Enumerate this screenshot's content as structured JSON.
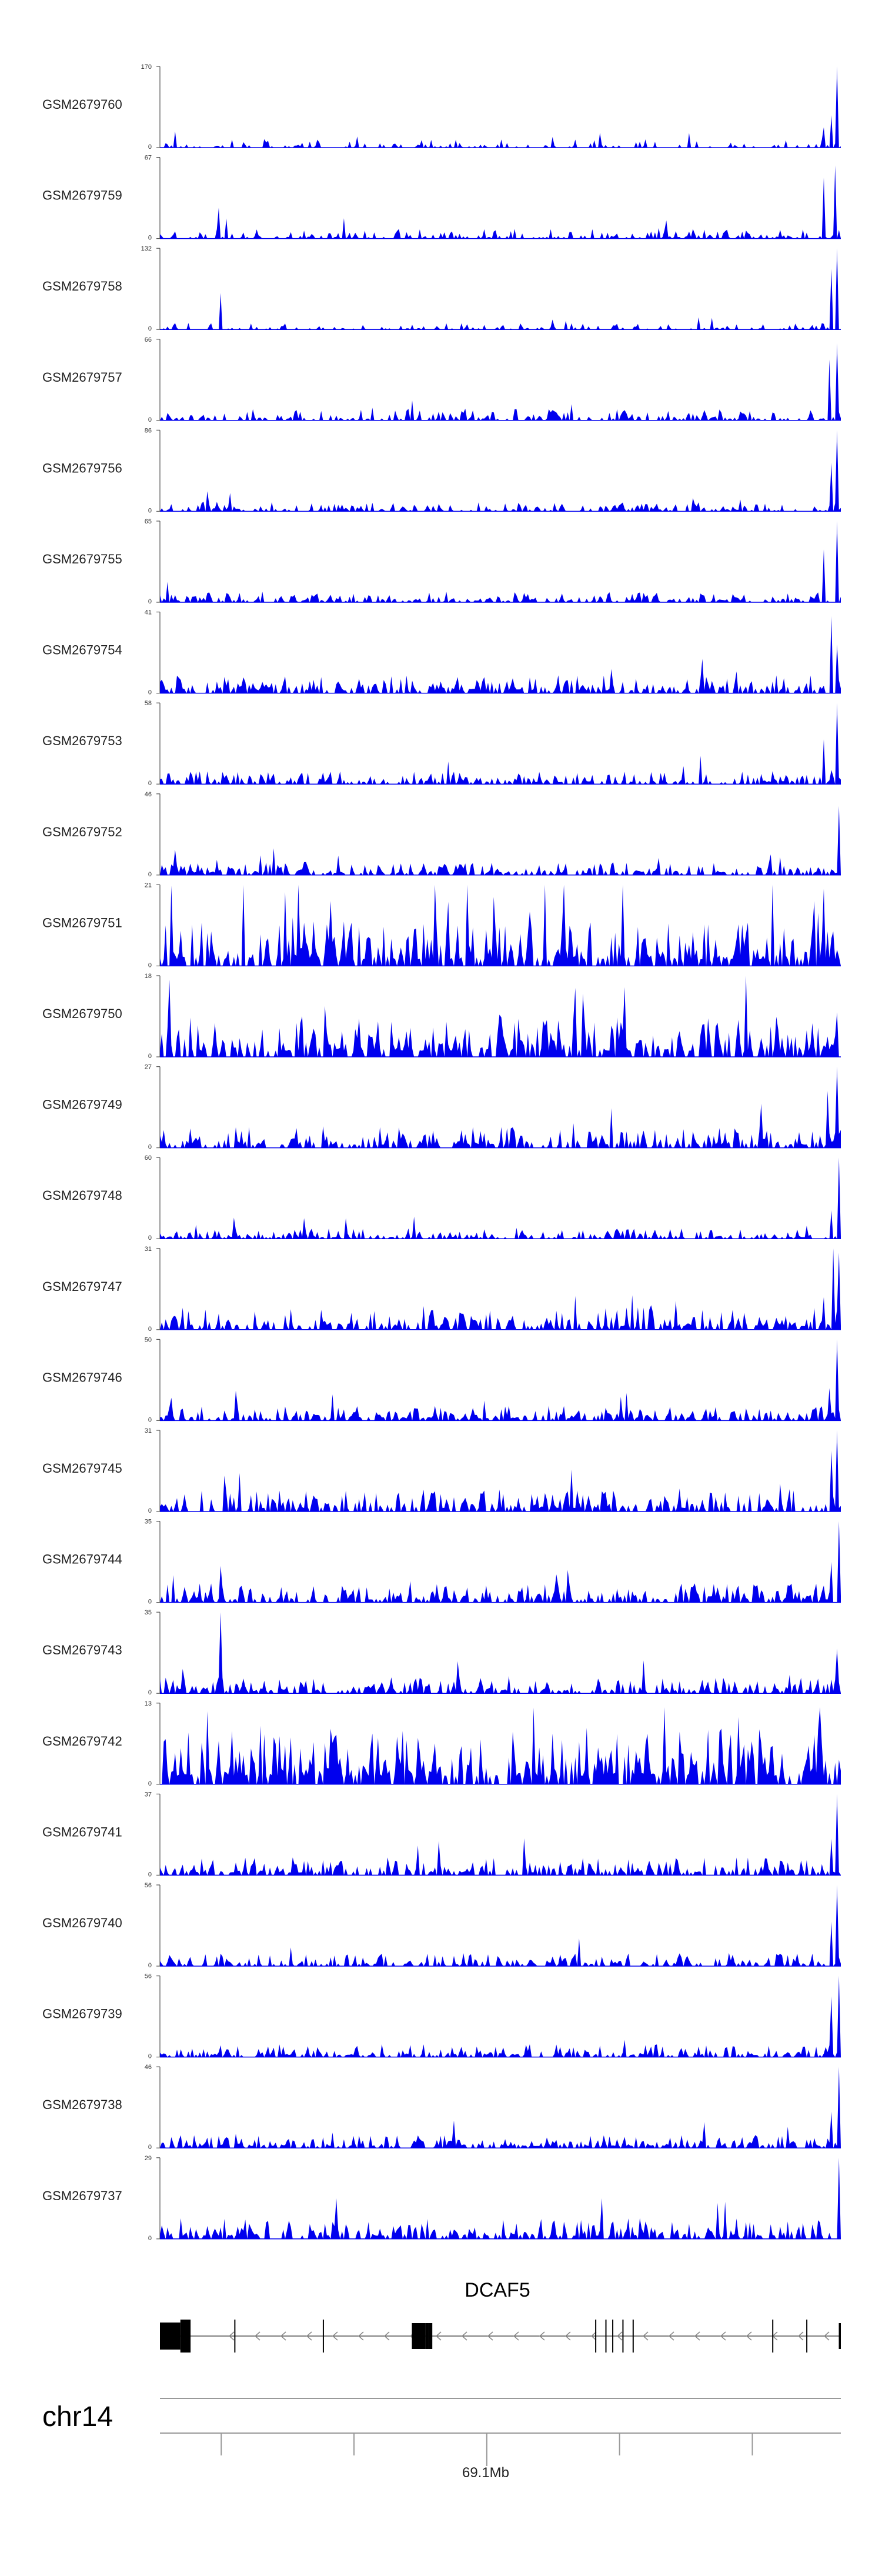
{
  "chart_data": {
    "type": "area",
    "title": "",
    "color": "#0000ee",
    "tracks": [
      {
        "name": "GSM2679760",
        "ymax": "170",
        "ymin": "0",
        "seed": 11,
        "scale": 0.1,
        "density": 0.3,
        "peaks": [
          [
            0.995,
            1.0
          ],
          [
            0.985,
            0.4
          ],
          [
            0.975,
            0.25
          ]
        ]
      },
      {
        "name": "GSM2679759",
        "ymax": "67",
        "ymin": "0",
        "seed": 23,
        "scale": 0.12,
        "density": 0.42,
        "peaks": [
          [
            0.993,
            0.9
          ],
          [
            0.975,
            0.75
          ],
          [
            0.085,
            0.38
          ],
          [
            0.27,
            0.25
          ]
        ]
      },
      {
        "name": "GSM2679758",
        "ymax": "132",
        "ymin": "0",
        "seed": 37,
        "scale": 0.08,
        "density": 0.35,
        "peaks": [
          [
            0.994,
            1.0
          ],
          [
            0.985,
            0.75
          ],
          [
            0.09,
            0.45
          ]
        ]
      },
      {
        "name": "GSM2679757",
        "ymax": "66",
        "ymin": "0",
        "seed": 41,
        "scale": 0.14,
        "density": 0.5,
        "peaks": [
          [
            0.995,
            0.95
          ],
          [
            0.982,
            0.75
          ]
        ]
      },
      {
        "name": "GSM2679756",
        "ymax": "86",
        "ymin": "0",
        "seed": 53,
        "scale": 0.12,
        "density": 0.48,
        "peaks": [
          [
            0.995,
            1.0
          ],
          [
            0.985,
            0.6
          ]
        ]
      },
      {
        "name": "GSM2679755",
        "ymax": "65",
        "ymin": "0",
        "seed": 67,
        "scale": 0.13,
        "density": 0.55,
        "peaks": [
          [
            0.995,
            1.0
          ],
          [
            0.975,
            0.65
          ],
          [
            0.01,
            0.25
          ]
        ]
      },
      {
        "name": "GSM2679754",
        "ymax": "41",
        "ymin": "0",
        "seed": 71,
        "scale": 0.22,
        "density": 0.6,
        "peaks": [
          [
            0.985,
            0.95
          ],
          [
            0.995,
            0.6
          ]
        ]
      },
      {
        "name": "GSM2679753",
        "ymax": "58",
        "ymin": "0",
        "seed": 83,
        "scale": 0.16,
        "density": 0.55,
        "peaks": [
          [
            0.995,
            1.0
          ],
          [
            0.975,
            0.55
          ],
          [
            0.77,
            0.22
          ]
        ]
      },
      {
        "name": "GSM2679752",
        "ymax": "46",
        "ymin": "0",
        "seed": 97,
        "scale": 0.16,
        "density": 0.6,
        "peaks": [
          [
            0.997,
            0.85
          ]
        ]
      },
      {
        "name": "GSM2679751",
        "ymax": "21",
        "ymin": "0",
        "seed": 101,
        "scale": 0.55,
        "density": 0.7,
        "peaks": [
          [
            0.975,
            0.95
          ],
          [
            0.96,
            0.8
          ],
          [
            0.25,
            0.8
          ],
          [
            0.49,
            0.85
          ]
        ]
      },
      {
        "name": "GSM2679750",
        "ymax": "18",
        "ymin": "0",
        "seed": 113,
        "scale": 0.5,
        "density": 0.7,
        "peaks": [
          [
            0.015,
            0.95
          ],
          [
            0.61,
            0.85
          ],
          [
            0.995,
            0.55
          ]
        ]
      },
      {
        "name": "GSM2679749",
        "ymax": "27",
        "ymin": "0",
        "seed": 127,
        "scale": 0.26,
        "density": 0.62,
        "peaks": [
          [
            0.995,
            1.0
          ],
          [
            0.98,
            0.7
          ]
        ]
      },
      {
        "name": "GSM2679748",
        "ymax": "60",
        "ymin": "0",
        "seed": 131,
        "scale": 0.13,
        "density": 0.55,
        "peaks": [
          [
            0.996,
            1.0
          ],
          [
            0.985,
            0.35
          ]
        ]
      },
      {
        "name": "GSM2679747",
        "ymax": "31",
        "ymin": "0",
        "seed": 139,
        "scale": 0.28,
        "density": 0.6,
        "peaks": [
          [
            0.99,
            1.0
          ],
          [
            0.997,
            0.95
          ],
          [
            0.975,
            0.4
          ]
        ]
      },
      {
        "name": "GSM2679746",
        "ymax": "50",
        "ymin": "0",
        "seed": 149,
        "scale": 0.18,
        "density": 0.58,
        "peaks": [
          [
            0.995,
            1.0
          ],
          [
            0.983,
            0.4
          ]
        ]
      },
      {
        "name": "GSM2679745",
        "ymax": "31",
        "ymin": "0",
        "seed": 151,
        "scale": 0.28,
        "density": 0.6,
        "peaks": [
          [
            0.995,
            1.0
          ],
          [
            0.985,
            0.75
          ]
        ]
      },
      {
        "name": "GSM2679744",
        "ymax": "35",
        "ymin": "0",
        "seed": 163,
        "scale": 0.24,
        "density": 0.6,
        "peaks": [
          [
            0.997,
            1.0
          ],
          [
            0.985,
            0.5
          ],
          [
            0.09,
            0.45
          ]
        ]
      },
      {
        "name": "GSM2679743",
        "ymax": "35",
        "ymin": "0",
        "seed": 173,
        "scale": 0.2,
        "density": 0.55,
        "peaks": [
          [
            0.09,
            1.0
          ],
          [
            0.995,
            0.55
          ]
        ]
      },
      {
        "name": "GSM2679742",
        "ymax": "13",
        "ymin": "0",
        "seed": 181,
        "scale": 0.7,
        "density": 0.72,
        "peaks": [
          [
            0.74,
            0.95
          ],
          [
            0.97,
            0.95
          ],
          [
            0.07,
            0.9
          ]
        ]
      },
      {
        "name": "GSM2679741",
        "ymax": "37",
        "ymin": "0",
        "seed": 191,
        "scale": 0.22,
        "density": 0.6,
        "peaks": [
          [
            0.995,
            1.0
          ],
          [
            0.985,
            0.45
          ]
        ]
      },
      {
        "name": "GSM2679740",
        "ymax": "56",
        "ymin": "0",
        "seed": 193,
        "scale": 0.16,
        "density": 0.55,
        "peaks": [
          [
            0.995,
            1.0
          ],
          [
            0.985,
            0.55
          ]
        ]
      },
      {
        "name": "GSM2679739",
        "ymax": "56",
        "ymin": "0",
        "seed": 197,
        "scale": 0.16,
        "density": 0.55,
        "peaks": [
          [
            0.996,
            1.0
          ],
          [
            0.985,
            0.75
          ]
        ]
      },
      {
        "name": "GSM2679738",
        "ymax": "46",
        "ymin": "0",
        "seed": 199,
        "scale": 0.16,
        "density": 0.58,
        "peaks": [
          [
            0.996,
            1.0
          ],
          [
            0.985,
            0.45
          ]
        ]
      },
      {
        "name": "GSM2679737",
        "ymax": "29",
        "ymin": "0",
        "seed": 211,
        "scale": 0.26,
        "density": 0.62,
        "peaks": [
          [
            0.997,
            1.0
          ],
          [
            0.65,
            0.5
          ],
          [
            0.26,
            0.5
          ]
        ]
      }
    ],
    "gene": {
      "name": "DCAF5",
      "strand": "-",
      "exons": [
        [
          0.0,
          0.03
        ],
        [
          0.03,
          0.045
        ],
        [
          0.37,
          0.39
        ],
        [
          0.39,
          0.395
        ],
        [
          0.395,
          0.4
        ],
        [
          0.997,
          1.0
        ]
      ],
      "introns_ticks": [
        0.11,
        0.24,
        0.64,
        0.655,
        0.665,
        0.68,
        0.695,
        0.9,
        0.95
      ]
    },
    "chromosome": "chr14",
    "position_label": "69.1Mb",
    "axis_ticks": [
      0.09,
      0.285,
      0.48,
      0.675,
      0.87
    ],
    "label_tick_index": 2
  }
}
